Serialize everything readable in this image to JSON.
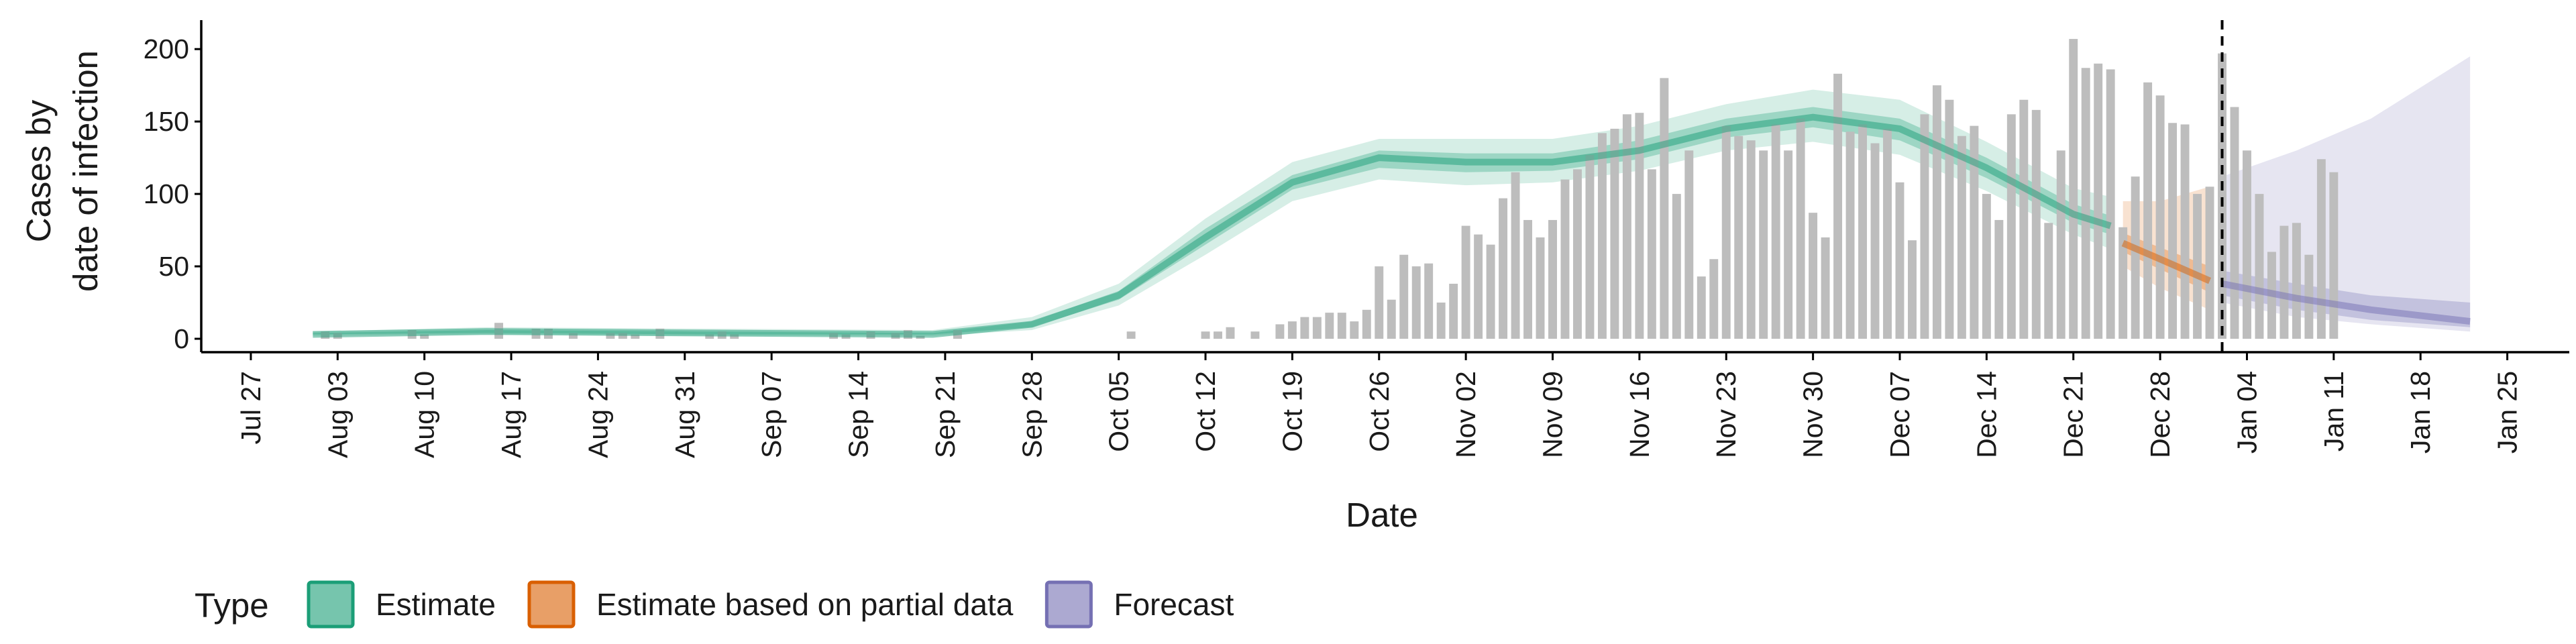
{
  "chart_data": {
    "type": "bar",
    "xlabel": "Date",
    "ylabel_lines": [
      "Cases by",
      "date of infection"
    ],
    "ylim": [
      0,
      220
    ],
    "y_ticks": [
      0,
      50,
      100,
      150,
      200
    ],
    "x_range": [
      "2020-07-23",
      "2021-01-30"
    ],
    "x_ticks": [
      {
        "date": "2020-07-27",
        "label": "Jul 27"
      },
      {
        "date": "2020-08-03",
        "label": "Aug 03"
      },
      {
        "date": "2020-08-10",
        "label": "Aug 10"
      },
      {
        "date": "2020-08-17",
        "label": "Aug 17"
      },
      {
        "date": "2020-08-24",
        "label": "Aug 24"
      },
      {
        "date": "2020-08-31",
        "label": "Aug 31"
      },
      {
        "date": "2020-09-07",
        "label": "Sep 07"
      },
      {
        "date": "2020-09-14",
        "label": "Sep 14"
      },
      {
        "date": "2020-09-21",
        "label": "Sep 21"
      },
      {
        "date": "2020-09-28",
        "label": "Sep 28"
      },
      {
        "date": "2020-10-05",
        "label": "Oct 05"
      },
      {
        "date": "2020-10-12",
        "label": "Oct 12"
      },
      {
        "date": "2020-10-19",
        "label": "Oct 19"
      },
      {
        "date": "2020-10-26",
        "label": "Oct 26"
      },
      {
        "date": "2020-11-02",
        "label": "Nov 02"
      },
      {
        "date": "2020-11-09",
        "label": "Nov 09"
      },
      {
        "date": "2020-11-16",
        "label": "Nov 16"
      },
      {
        "date": "2020-11-23",
        "label": "Nov 23"
      },
      {
        "date": "2020-11-30",
        "label": "Nov 30"
      },
      {
        "date": "2020-12-07",
        "label": "Dec 07"
      },
      {
        "date": "2020-12-14",
        "label": "Dec 14"
      },
      {
        "date": "2020-12-21",
        "label": "Dec 21"
      },
      {
        "date": "2020-12-28",
        "label": "Dec 28"
      },
      {
        "date": "2021-01-04",
        "label": "Jan 04"
      },
      {
        "date": "2021-01-11",
        "label": "Jan 11"
      },
      {
        "date": "2021-01-18",
        "label": "Jan 18"
      },
      {
        "date": "2021-01-25",
        "label": "Jan 25"
      }
    ],
    "grid": false,
    "legend": {
      "position": "bottom",
      "title": "Type",
      "items": [
        {
          "label": "Estimate",
          "color": "#1b9e77"
        },
        {
          "label": "Estimate based on partial data",
          "color": "#d95f02"
        },
        {
          "label": "Forecast",
          "color": "#7570b3"
        }
      ]
    },
    "bar_color": "#bdbdbd",
    "reported_cases": {
      "start_date": "2020-08-01",
      "values": [
        0,
        5,
        4,
        0,
        0,
        0,
        0,
        0,
        6,
        3,
        0,
        0,
        0,
        0,
        0,
        11,
        0,
        0,
        7,
        7,
        0,
        4,
        0,
        0,
        4,
        4,
        3,
        0,
        7,
        0,
        0,
        0,
        3,
        5,
        3,
        0,
        0,
        0,
        0,
        0,
        0,
        0,
        4,
        3,
        0,
        5,
        0,
        4,
        6,
        2,
        0,
        0,
        6,
        0,
        0,
        0,
        0,
        0,
        0,
        0,
        0,
        0,
        0,
        0,
        0,
        0,
        5,
        0,
        0,
        0,
        0,
        0,
        5,
        5,
        8,
        0,
        5,
        0,
        10,
        12,
        15,
        15,
        18,
        18,
        12,
        20,
        50,
        27,
        58,
        50,
        52,
        25,
        38,
        78,
        72,
        65,
        97,
        115,
        82,
        70,
        82,
        110,
        117,
        127,
        142,
        145,
        155,
        156,
        117,
        180,
        100,
        130,
        43,
        55,
        147,
        140,
        137,
        130,
        148,
        130,
        152,
        87,
        70,
        183,
        143,
        148,
        135,
        145,
        108,
        68,
        155,
        175,
        165,
        140,
        147,
        100,
        82,
        155,
        165,
        158,
        80,
        130,
        207,
        187,
        190,
        186,
        77,
        112,
        177,
        168,
        149,
        148,
        100,
        105,
        197,
        160,
        130,
        100,
        60,
        78,
        80,
        58,
        124,
        115,
        0
      ]
    },
    "series": [
      {
        "name": "Estimate",
        "dates": [
          "2020-08-01",
          "2020-08-15",
          "2020-09-01",
          "2020-09-20",
          "2020-09-28",
          "2020-10-05",
          "2020-10-12",
          "2020-10-19",
          "2020-10-26",
          "2020-11-02",
          "2020-11-09",
          "2020-11-16",
          "2020-11-23",
          "2020-11-30",
          "2020-12-07",
          "2020-12-14",
          "2020-12-21",
          "2020-12-24"
        ],
        "median": [
          3,
          5,
          4,
          3,
          10,
          30,
          70,
          108,
          125,
          122,
          122,
          130,
          145,
          153,
          145,
          118,
          86,
          78
        ],
        "lower_50": [
          3,
          4,
          3,
          3,
          8,
          27,
          65,
          103,
          118,
          115,
          116,
          124,
          139,
          146,
          137,
          111,
          80,
          72
        ],
        "upper_50": [
          4,
          6,
          5,
          4,
          12,
          33,
          76,
          113,
          130,
          128,
          128,
          137,
          152,
          160,
          152,
          125,
          93,
          85
        ],
        "lower_90": [
          2,
          3,
          2,
          2,
          6,
          23,
          58,
          95,
          110,
          106,
          108,
          116,
          130,
          136,
          127,
          102,
          72,
          62
        ],
        "upper_90": [
          5,
          8,
          7,
          6,
          15,
          38,
          83,
          122,
          138,
          138,
          138,
          147,
          162,
          172,
          165,
          136,
          104,
          98
        ]
      },
      {
        "name": "Estimate based on partial data",
        "dates": [
          "2020-12-25",
          "2020-12-28",
          "2021-01-01"
        ],
        "median": [
          66,
          55,
          40
        ],
        "lower_50": [
          60,
          48,
          32
        ],
        "upper_50": [
          73,
          63,
          50
        ],
        "lower_90": [
          50,
          35,
          20
        ],
        "upper_90": [
          95,
          95,
          105
        ]
      },
      {
        "name": "Forecast",
        "dates": [
          "2021-01-02",
          "2021-01-08",
          "2021-01-14",
          "2021-01-22"
        ],
        "median": [
          38,
          28,
          20,
          12
        ],
        "lower_50": [
          30,
          20,
          13,
          8
        ],
        "upper_50": [
          47,
          38,
          30,
          25
        ],
        "lower_90": [
          25,
          15,
          10,
          5
        ],
        "upper_90": [
          112,
          130,
          152,
          195
        ]
      }
    ],
    "vline_date": "2021-01-02"
  }
}
